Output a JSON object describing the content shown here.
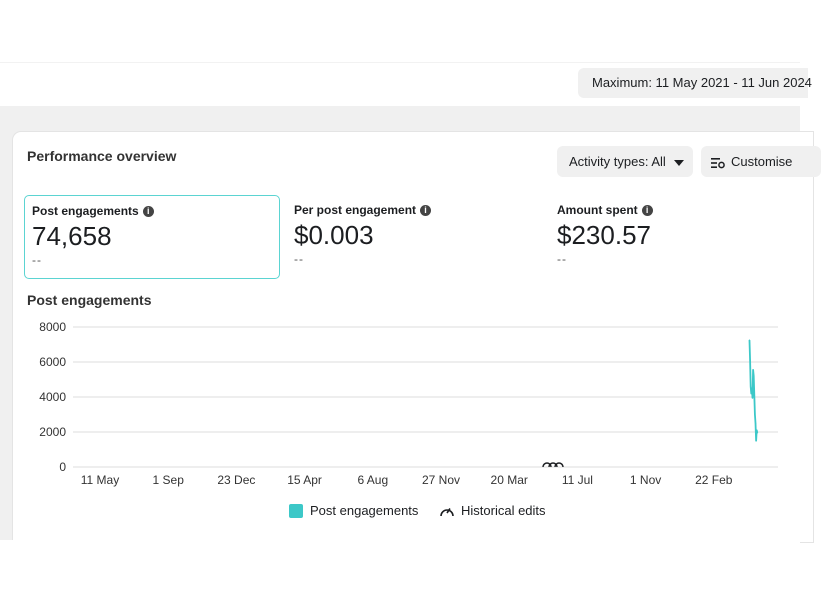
{
  "header": {
    "date_range": "Maximum: 11 May 2021 - 11 Jun 2024"
  },
  "card": {
    "title": "Performance overview",
    "activity_button": "Activity types: All",
    "customise_button": "Customise"
  },
  "metrics": [
    {
      "label": "Post engagements",
      "value": "74,658",
      "sub": "--",
      "selected": true
    },
    {
      "label": "Per post engagement",
      "value": "$0.003",
      "sub": "--",
      "selected": false
    },
    {
      "label": "Amount spent",
      "value": "$230.57",
      "sub": "--",
      "selected": false
    }
  ],
  "legend": {
    "series": "Post engagements",
    "historical": "Historical edits"
  },
  "colors": {
    "series": "#3cc8c8",
    "grid": "#dddddd",
    "selected_border": "#5bd4d2"
  },
  "chart_data": {
    "type": "line",
    "title": "Post engagements",
    "ylim": [
      0,
      8000
    ],
    "yticks": [
      0,
      2000,
      4000,
      6000,
      8000
    ],
    "xticks": [
      "11 May",
      "1 Sep",
      "23 Dec",
      "15 Apr",
      "6 Aug",
      "27 Nov",
      "20 Mar",
      "11 Jul",
      "1 Nov",
      "22 Feb"
    ],
    "grid": true,
    "legend_position": "bottom",
    "series": [
      {
        "name": "Post engagements",
        "x": [
          "2024-05-11",
          "2024-05-12",
          "2024-05-13",
          "2024-05-14",
          "2024-05-15",
          "2024-05-16",
          "2024-05-17",
          "2024-05-18",
          "2024-05-19",
          "2024-05-20",
          "2024-05-21",
          "2024-05-22",
          "2024-05-23",
          "2024-05-24"
        ],
        "y": [
          7250,
          6100,
          4600,
          4200,
          4500,
          3950,
          5550,
          5200,
          4100,
          3000,
          2500,
          1500,
          2100,
          1950
        ]
      }
    ]
  }
}
